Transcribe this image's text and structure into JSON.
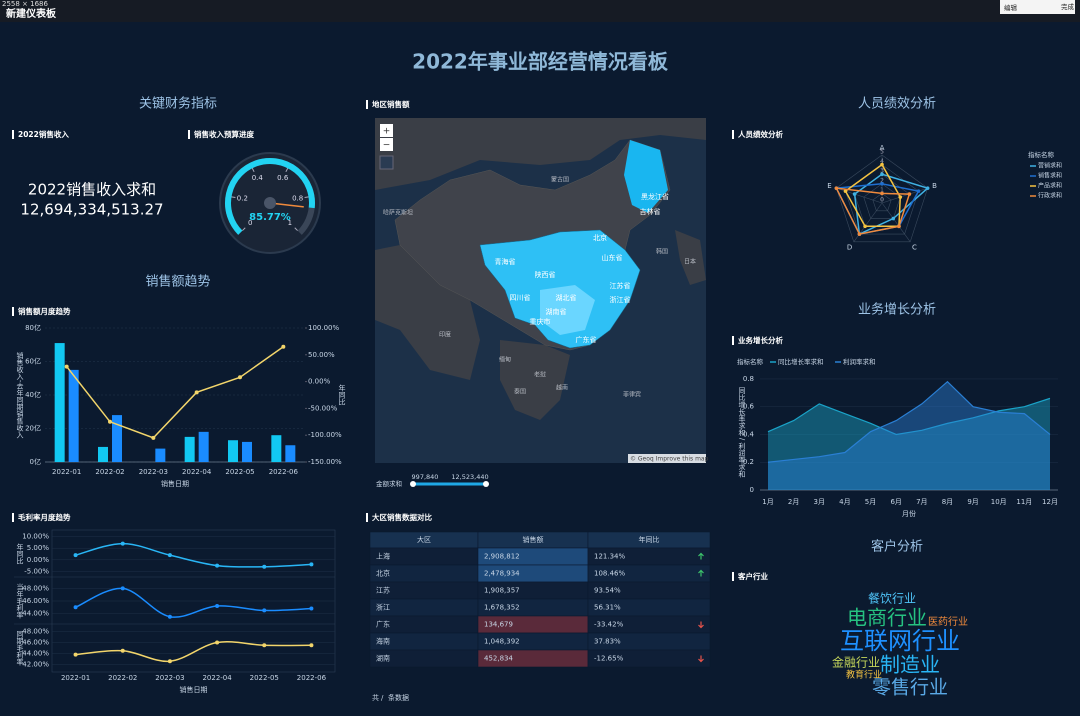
{
  "header": {
    "size_label": "2558 × 1686",
    "app_title": "新建仪表板",
    "toolbar": [
      "编辑",
      "完成"
    ],
    "title": "2022年事业部经营情况看板"
  },
  "sections": [
    "关键财务指标",
    "销售额趋势",
    "人员绩效分析",
    "业务增长分析",
    "客户分析"
  ],
  "kpi": {
    "panel_title": "2022销售收入",
    "label": "2022销售收入求和",
    "value": "12,694,334,513.27"
  },
  "chart_data": [
    {
      "type": "gauge",
      "title": "销售收入预算进度",
      "lim": [
        0,
        1
      ],
      "ticks": [
        0,
        0.2,
        0.4,
        0.6,
        0.8,
        1
      ],
      "values": [
        0.8577
      ],
      "value_labels": [
        "85.77%"
      ],
      "color": "#22d3f2",
      "pointer_color": "#f08a3c"
    },
    {
      "type": "bar_line",
      "title": "销售额月度趋势",
      "categories": [
        "2022-01",
        "2022-02",
        "2022-03",
        "2022-04",
        "2022-05",
        "2022-06"
      ],
      "xlabel": "销售日期",
      "ylabel": "销售收入-去年同期销售收入",
      "y2label": "年同比",
      "ylim": [
        0,
        80
      ],
      "yticks": [
        {
          "value": 0,
          "label": "0亿"
        },
        {
          "value": 20,
          "label": "20亿"
        },
        {
          "value": 40,
          "label": "40亿"
        },
        {
          "value": 60,
          "label": "60亿"
        },
        {
          "value": 80,
          "label": "80亿"
        }
      ],
      "y2lim": [
        -150,
        100
      ],
      "y2ticks": [
        {
          "value": -150,
          "label": "-150.00%"
        },
        {
          "value": -100,
          "label": "-100.00%"
        },
        {
          "value": -50,
          "label": "-50.00%"
        },
        {
          "value": 0,
          "label": "0.00%"
        },
        {
          "value": 50,
          "label": "50.00%"
        },
        {
          "value": 100,
          "label": "100.00%"
        }
      ],
      "grid": true,
      "series": [
        {
          "type": "bar",
          "color": "#12c8f2",
          "values": [
            71,
            9,
            0,
            15,
            13,
            16
          ]
        },
        {
          "type": "bar",
          "color": "#1a8cff",
          "values": [
            55,
            28,
            8,
            18,
            12,
            10
          ]
        },
        {
          "type": "line",
          "axis": "y2",
          "color": "#f2d56b",
          "values": [
            28,
            -75,
            -105,
            -20,
            8,
            65
          ]
        }
      ]
    },
    {
      "type": "line",
      "title": "毛利率月度趋势",
      "categories": [
        "2022-01",
        "2022-02",
        "2022-03",
        "2022-04",
        "2022-05",
        "2022-06"
      ],
      "xlabel": "销售日期",
      "panels": [
        {
          "ylabel": "年同比",
          "color": "#29b6f6",
          "ylim": [
            -7,
            12
          ],
          "yticks": [
            {
              "value": -5,
              "label": "-5.00%"
            },
            {
              "value": 0,
              "label": "0.00%"
            },
            {
              "value": 5,
              "label": "5.00%"
            },
            {
              "value": 10,
              "label": "10.00%"
            }
          ],
          "values": [
            2,
            7,
            2,
            -2.5,
            -3,
            -2
          ]
        },
        {
          "ylabel": "当年毛利率",
          "color": "#1a8cff",
          "ylim": [
            42.5,
            49.5
          ],
          "yticks": [
            {
              "value": 44,
              "label": "44.00%"
            },
            {
              "value": 46,
              "label": "46.00%"
            },
            {
              "value": 48,
              "label": "48.00%"
            }
          ],
          "values": [
            45,
            48,
            43.5,
            45.2,
            44.5,
            44.8
          ]
        },
        {
          "ylabel": "同期毛利率",
          "color": "#f2d56b",
          "ylim": [
            41,
            49
          ],
          "yticks": [
            {
              "value": 42,
              "label": "42.00%"
            },
            {
              "value": 44,
              "label": "44.00%"
            },
            {
              "value": 46,
              "label": "46.00%"
            },
            {
              "value": 48,
              "label": "48.00%"
            }
          ],
          "values": [
            43.8,
            44.5,
            42.6,
            46,
            45.5,
            45.5
          ]
        }
      ]
    },
    {
      "type": "radar",
      "title": "人员绩效分析",
      "axes": [
        "A",
        "B",
        "C",
        "D",
        "E"
      ],
      "rlim": [
        0,
        5
      ],
      "rticks": [
        0,
        1,
        2,
        3,
        4,
        5
      ],
      "legend_title": "指标名称",
      "series": [
        {
          "name": "营销求和",
          "color": "#3fb1e3",
          "values": [
            3,
            5,
            2,
            4,
            3
          ]
        },
        {
          "name": "销售求和",
          "color": "#1f6fd0",
          "values": [
            2,
            4,
            3,
            4,
            5
          ]
        },
        {
          "name": "产品求和",
          "color": "#f5c342",
          "values": [
            4,
            2,
            3,
            3,
            4
          ]
        },
        {
          "name": "行政求和",
          "color": "#f08a3c",
          "values": [
            1,
            3,
            3,
            4,
            5
          ]
        }
      ]
    },
    {
      "type": "area",
      "title": "业务增长分析",
      "legend_title": "指标名称",
      "categories": [
        "1月",
        "2月",
        "3月",
        "4月",
        "5月",
        "6月",
        "7月",
        "8月",
        "9月",
        "10月",
        "11月",
        "12月"
      ],
      "xlabel": "月份",
      "ylabel": "同比增长率求和 / 利润率求和",
      "ylim": [
        0,
        0.85
      ],
      "yticks": [
        0,
        0.2,
        0.4,
        0.6,
        0.8
      ],
      "grid": true,
      "series": [
        {
          "name": "同比增长率求和",
          "color": "#1aa3c8",
          "values": [
            0.42,
            0.5,
            0.62,
            0.55,
            0.48,
            0.4,
            0.43,
            0.48,
            0.52,
            0.57,
            0.6,
            0.66
          ]
        },
        {
          "name": "利润率求和",
          "color": "#2a7fd4",
          "values": [
            0.2,
            0.22,
            0.24,
            0.27,
            0.42,
            0.5,
            0.62,
            0.78,
            0.6,
            0.56,
            0.55,
            0.4
          ]
        }
      ]
    }
  ],
  "map": {
    "title": "地区销售额",
    "zoom": [
      "+",
      "−"
    ],
    "attribution": "© Geoq Improve this map",
    "labels": [
      "黑龙江省",
      "吉林省",
      "北京",
      "山东省",
      "江苏省",
      "浙江省",
      "湖北省",
      "湖南省",
      "四川省",
      "陕西省",
      "青海省",
      "广东省",
      "重庆市",
      "蒙古国",
      "哈萨克斯坦",
      "印度",
      "缅甸",
      "老挝",
      "泰国",
      "越南",
      "菲律宾",
      "日本",
      "韩国"
    ],
    "legend": {
      "label": "金额求和",
      "range_labels": [
        "997,840",
        "12,523,440"
      ]
    }
  },
  "table": {
    "title": "大区销售数据对比",
    "headers": [
      "大区",
      "销售额",
      "年同比"
    ],
    "rows": [
      [
        "上海",
        "2,908,812",
        "121.34%"
      ],
      [
        "北京",
        "2,478,934",
        "108.46%"
      ],
      [
        "江苏",
        "1,908,357",
        "93.54%"
      ],
      [
        "浙江",
        "1,678,352",
        "56.31%"
      ],
      [
        "广东",
        "134,679",
        "-33.42%"
      ],
      [
        "海南",
        "1,048,392",
        "37.83%"
      ],
      [
        "湖南",
        "452,834",
        "-12.65%"
      ]
    ],
    "trend": [
      "up",
      "up",
      null,
      null,
      "down",
      null,
      "down"
    ],
    "highlight": [
      "blue",
      "blue",
      "none",
      "none",
      "red",
      "none",
      "red"
    ],
    "footer": [
      "共",
      "/",
      "条数据"
    ]
  },
  "word_cloud": {
    "title": "客户行业",
    "words": [
      {
        "text": "餐饮行业",
        "color": "#4fc3f7"
      },
      {
        "text": "电商行业",
        "color": "#26c281"
      },
      {
        "text": "医药行业",
        "color": "#f08a3c"
      },
      {
        "text": "互联网行业",
        "color": "#1e90ff"
      },
      {
        "text": "金融行业",
        "color": "#c5d65a"
      },
      {
        "text": "制造业",
        "color": "#29b6f6"
      },
      {
        "text": "教育行业",
        "color": "#f5c342"
      },
      {
        "text": "零售行业",
        "color": "#5aa9e6"
      }
    ]
  }
}
